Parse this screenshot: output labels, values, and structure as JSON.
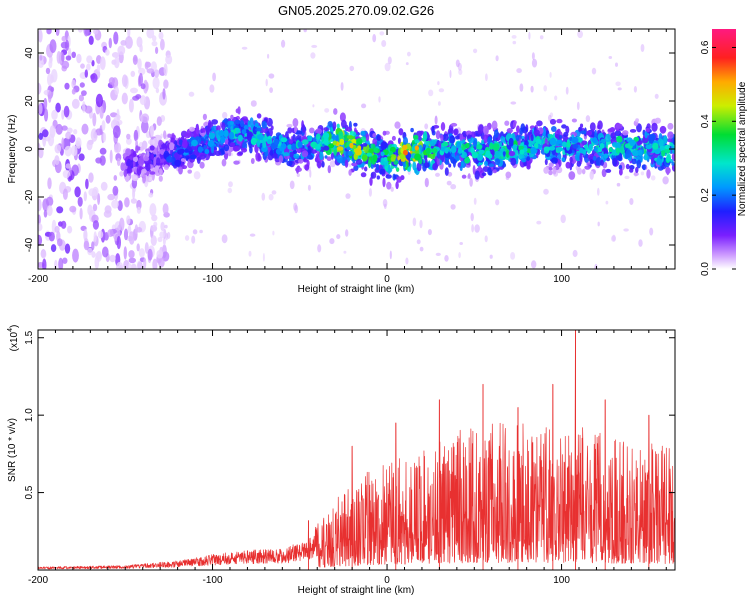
{
  "figure": {
    "title": "GN05.2025.270.09.02.G26"
  },
  "chart_data": [
    {
      "type": "heatmap",
      "xlabel": "Height of straight line (km)",
      "ylabel": "Frequency (Hz)",
      "xlim": [
        -200,
        165
      ],
      "ylim": [
        -50,
        50
      ],
      "x_ticks": [
        -200,
        -100,
        0,
        100
      ],
      "y_ticks": [
        -40,
        -20,
        0,
        20,
        40
      ],
      "x_tick_labels": [
        "-200",
        "-100",
        "0",
        "100"
      ],
      "y_tick_labels": [
        "-40",
        "-20",
        "0",
        "20",
        "40"
      ],
      "colorbar": {
        "label": "Normalized spectral amplitude",
        "range": [
          0.0,
          0.65
        ],
        "ticks": [
          0.0,
          0.2,
          0.4,
          0.6
        ],
        "tick_labels": [
          "0.0",
          "0.2",
          "0.4",
          "0.6"
        ],
        "colormap": "rainbow (white-violet-blue-cyan-green-yellow-red-magenta)"
      },
      "ridge": [
        {
          "x": -150,
          "f": -6,
          "amp": 0.12,
          "spread": 6
        },
        {
          "x": -130,
          "f": -4,
          "amp": 0.18,
          "spread": 7
        },
        {
          "x": -110,
          "f": 1,
          "amp": 0.24,
          "spread": 8
        },
        {
          "x": -90,
          "f": 6,
          "amp": 0.3,
          "spread": 9
        },
        {
          "x": -75,
          "f": 6,
          "amp": 0.32,
          "spread": 9
        },
        {
          "x": -60,
          "f": 0,
          "amp": 0.28,
          "spread": 8
        },
        {
          "x": -40,
          "f": 2,
          "amp": 0.34,
          "spread": 8
        },
        {
          "x": -25,
          "f": 3,
          "amp": 0.55,
          "spread": 9
        },
        {
          "x": -10,
          "f": -2,
          "amp": 0.42,
          "spread": 9
        },
        {
          "x": 0,
          "f": -4,
          "amp": 0.35,
          "spread": 9
        },
        {
          "x": 10,
          "f": -2,
          "amp": 0.6,
          "spread": 9
        },
        {
          "x": 30,
          "f": 0,
          "amp": 0.36,
          "spread": 9
        },
        {
          "x": 50,
          "f": -2,
          "amp": 0.34,
          "spread": 9
        },
        {
          "x": 70,
          "f": 0,
          "amp": 0.36,
          "spread": 9
        },
        {
          "x": 90,
          "f": 2,
          "amp": 0.33,
          "spread": 9
        },
        {
          "x": 110,
          "f": 1,
          "amp": 0.32,
          "spread": 9
        },
        {
          "x": 130,
          "f": 0,
          "amp": 0.33,
          "spread": 9
        },
        {
          "x": 150,
          "f": 0,
          "amp": 0.34,
          "spread": 9
        },
        {
          "x": 165,
          "f": -1,
          "amp": 0.33,
          "spread": 9
        }
      ]
    },
    {
      "type": "line",
      "xlabel": "Height of straight line (km)",
      "ylabel": "SNR (10 * v/v)",
      "y_multiplier_label": "(x10",
      "y_multiplier_exp": "4",
      "xlim": [
        -200,
        165
      ],
      "ylim": [
        0,
        15500
      ],
      "x_ticks": [
        -200,
        -100,
        0,
        100
      ],
      "y_ticks": [
        5000,
        10000,
        15000
      ],
      "x_tick_labels": [
        "-200",
        "-100",
        "0",
        "100"
      ],
      "y_tick_labels": [
        "0.5",
        "1.0",
        "1.5"
      ],
      "series": [
        {
          "color": "#e83030",
          "envelope": [
            {
              "x": -200,
              "y": 200
            },
            {
              "x": -150,
              "y": 300
            },
            {
              "x": -120,
              "y": 600
            },
            {
              "x": -100,
              "y": 1000
            },
            {
              "x": -80,
              "y": 1300
            },
            {
              "x": -60,
              "y": 1400
            },
            {
              "x": -45,
              "y": 2000
            },
            {
              "x": -40,
              "y": 3000
            },
            {
              "x": -30,
              "y": 4500
            },
            {
              "x": -20,
              "y": 5500
            },
            {
              "x": -10,
              "y": 6500
            },
            {
              "x": 0,
              "y": 7000
            },
            {
              "x": 20,
              "y": 8000
            },
            {
              "x": 40,
              "y": 9000
            },
            {
              "x": 60,
              "y": 9500
            },
            {
              "x": 80,
              "y": 9500
            },
            {
              "x": 100,
              "y": 9500
            },
            {
              "x": 120,
              "y": 9000
            },
            {
              "x": 140,
              "y": 8500
            },
            {
              "x": 165,
              "y": 8000
            }
          ],
          "peaks": [
            {
              "x": -45,
              "y": 3200
            },
            {
              "x": -20,
              "y": 8000
            },
            {
              "x": 5,
              "y": 9500
            },
            {
              "x": 30,
              "y": 11000
            },
            {
              "x": 55,
              "y": 12000
            },
            {
              "x": 75,
              "y": 10500
            },
            {
              "x": 95,
              "y": 12000
            },
            {
              "x": 108,
              "y": 15500
            },
            {
              "x": 125,
              "y": 11000
            },
            {
              "x": 150,
              "y": 10000
            }
          ]
        }
      ]
    }
  ]
}
